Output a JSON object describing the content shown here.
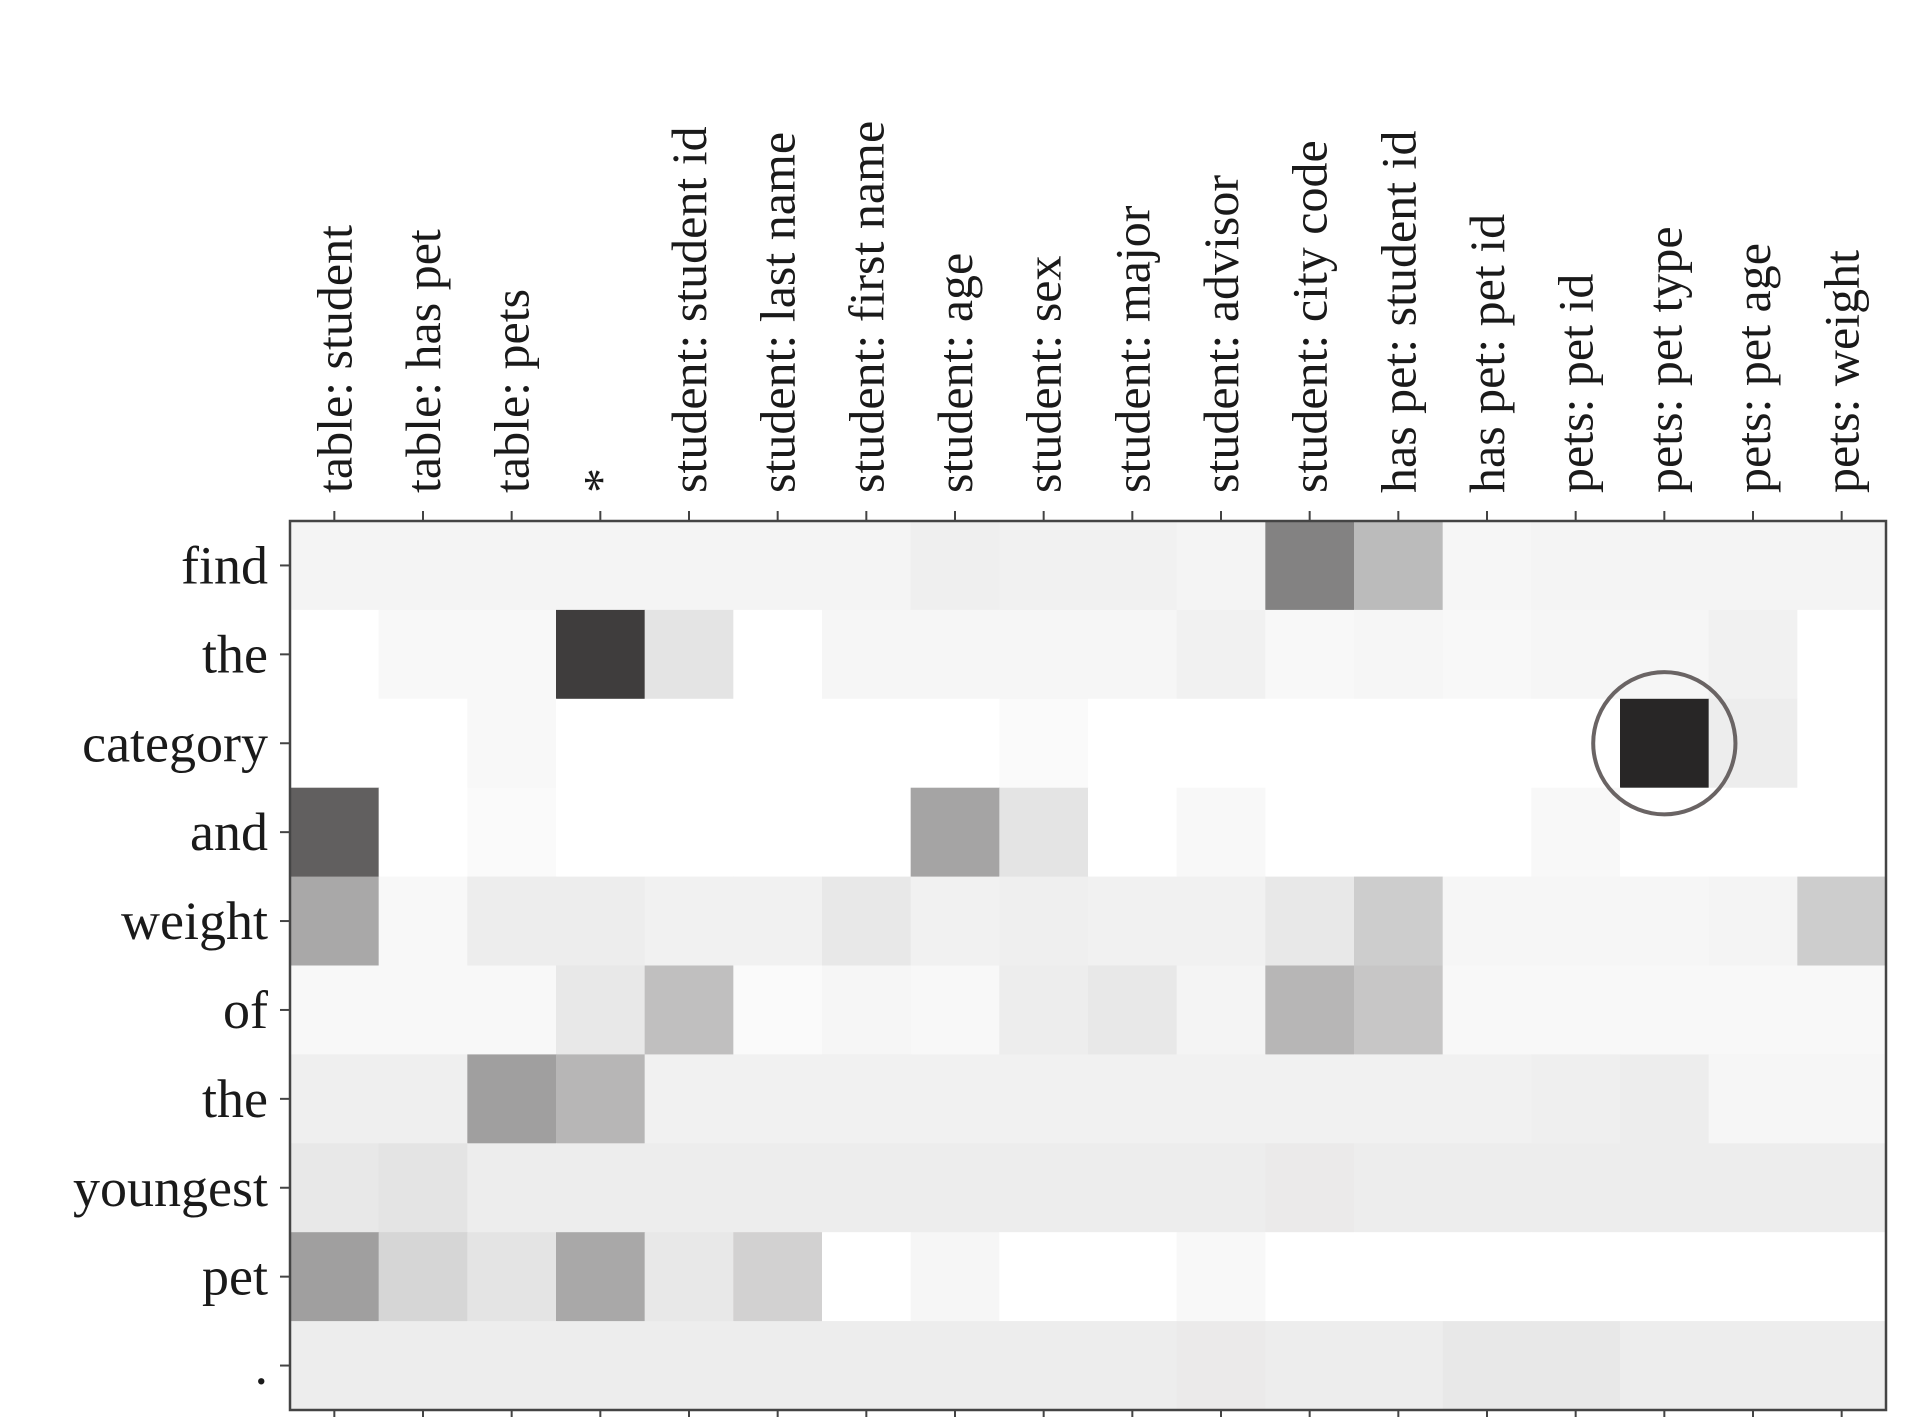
{
  "chart_data": {
    "type": "heatmap",
    "title": "",
    "x_categories": [
      "table: student",
      "table: has pet",
      "table: pets",
      "*",
      "student: student id",
      "student: last name",
      "student: first name",
      "student: age",
      "student: sex",
      "student: major",
      "student: advisor",
      "student: city code",
      "has pet: student id",
      "has pet: pet id",
      "pets: pet id",
      "pets: pet type",
      "pets: pet age",
      "pets: weight"
    ],
    "y_categories": [
      "find",
      "the",
      "category",
      "and",
      "weight",
      "of",
      "the",
      "youngest",
      "pet",
      "."
    ],
    "values": [
      [
        0.05,
        0.05,
        0.05,
        0.05,
        0.05,
        0.05,
        0.05,
        0.07,
        0.06,
        0.06,
        0.05,
        0.55,
        0.3,
        0.04,
        0.05,
        0.05,
        0.05,
        0.05
      ],
      [
        0.0,
        0.03,
        0.03,
        0.85,
        0.12,
        0.0,
        0.04,
        0.04,
        0.04,
        0.04,
        0.06,
        0.03,
        0.04,
        0.03,
        0.04,
        0.04,
        0.06,
        0.0
      ],
      [
        0.0,
        0.0,
        0.03,
        0.0,
        0.0,
        0.0,
        0.0,
        0.0,
        0.02,
        0.0,
        0.0,
        0.0,
        0.0,
        0.0,
        0.0,
        0.95,
        0.08,
        0.0
      ],
      [
        0.7,
        0.0,
        0.02,
        0.0,
        0.0,
        0.0,
        0.0,
        0.4,
        0.12,
        0.0,
        0.03,
        0.0,
        0.0,
        0.0,
        0.03,
        0.0,
        0.0,
        0.0
      ],
      [
        0.38,
        0.03,
        0.08,
        0.08,
        0.06,
        0.06,
        0.1,
        0.06,
        0.07,
        0.06,
        0.06,
        0.1,
        0.22,
        0.04,
        0.04,
        0.04,
        0.05,
        0.22
      ],
      [
        0.03,
        0.03,
        0.03,
        0.1,
        0.28,
        0.02,
        0.04,
        0.03,
        0.08,
        0.1,
        0.05,
        0.32,
        0.25,
        0.03,
        0.03,
        0.03,
        0.03,
        0.03
      ],
      [
        0.07,
        0.07,
        0.42,
        0.32,
        0.06,
        0.06,
        0.06,
        0.06,
        0.06,
        0.06,
        0.06,
        0.06,
        0.06,
        0.06,
        0.07,
        0.08,
        0.04,
        0.04
      ],
      [
        0.1,
        0.12,
        0.08,
        0.08,
        0.08,
        0.08,
        0.08,
        0.08,
        0.08,
        0.08,
        0.08,
        0.09,
        0.08,
        0.08,
        0.08,
        0.08,
        0.08,
        0.08
      ],
      [
        0.42,
        0.18,
        0.12,
        0.38,
        0.1,
        0.2,
        0.0,
        0.04,
        0.0,
        0.0,
        0.03,
        0.0,
        0.0,
        0.0,
        0.0,
        0.0,
        0.0,
        0.0
      ],
      [
        0.08,
        0.08,
        0.08,
        0.08,
        0.08,
        0.08,
        0.08,
        0.08,
        0.08,
        0.08,
        0.09,
        0.08,
        0.08,
        0.1,
        0.1,
        0.08,
        0.08,
        0.08
      ]
    ],
    "value_range": [
      0,
      1
    ],
    "colormap": "greys",
    "highlight": {
      "row": 2,
      "col": 15,
      "shape": "circle",
      "color": "#6a6464"
    },
    "grid": false
  }
}
